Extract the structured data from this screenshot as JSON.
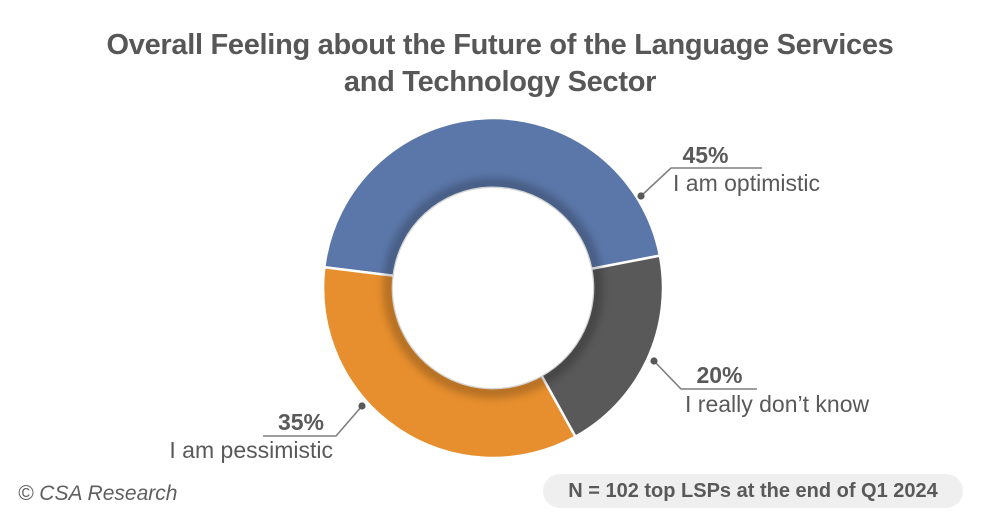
{
  "title": {
    "line1": "Overall Feeling about the Future of the Language Services",
    "line2": "and Technology Sector"
  },
  "chart_data": {
    "type": "pie",
    "subtype": "donut",
    "title": "Overall Feeling about the Future of the Language Services and Technology Sector",
    "unit": "%",
    "start_angle_deg": 277,
    "direction": "clockwise",
    "inner_radius_ratio": 0.59,
    "slices": [
      {
        "label": "I am optimistic",
        "value": 45,
        "pct_label": "45%",
        "color": "#5B77A9"
      },
      {
        "label": "I really don’t know",
        "value": 20,
        "pct_label": "20%",
        "color": "#595959"
      },
      {
        "label": "I am pessimistic",
        "value": 35,
        "pct_label": "35%",
        "color": "#E78F2E"
      }
    ],
    "colors": {
      "leader_line": "#7F7F7F",
      "label_text": "#595959",
      "title_text": "#575757",
      "badge_bg": "#EFEFEF"
    },
    "legend": "none",
    "labels_position": "outside-callouts"
  },
  "footer": {
    "copyright": "© CSA Research",
    "sample_note": "N = 102 top LSPs at the end of Q1 2024"
  }
}
